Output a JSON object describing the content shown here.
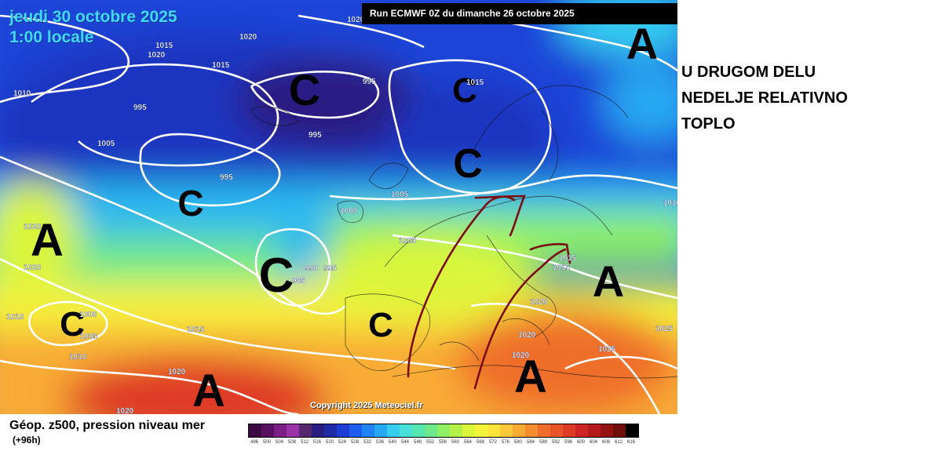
{
  "map": {
    "date_line": "jeudi 30 octobre 2025",
    "time_line": "1:00 locale",
    "run_banner": "Run ECMWF 0Z du dimanche 26 octobre 2025",
    "copyright": "Copyright 2025 Meteociel.fr",
    "pressure_centers": [
      {
        "type": "high",
        "letter": "A"
      },
      {
        "type": "low",
        "letter": "C"
      },
      {
        "type": "low",
        "letter": "C"
      },
      {
        "type": "low",
        "letter": "C"
      },
      {
        "type": "low",
        "letter": "C"
      },
      {
        "type": "low",
        "letter": "C"
      },
      {
        "type": "high",
        "letter": "A"
      },
      {
        "type": "low",
        "letter": "C"
      },
      {
        "type": "low",
        "letter": "C"
      },
      {
        "type": "high",
        "letter": "A"
      },
      {
        "type": "high",
        "letter": "A"
      },
      {
        "type": "high",
        "letter": "A"
      }
    ],
    "isobar_labels": [
      "1010",
      "1020",
      "1025",
      "1020",
      "1015",
      "1015",
      "995",
      "995",
      "1015",
      "1005",
      "995",
      "1005",
      "995",
      "1000",
      "1005",
      "1010",
      "1020",
      "1020",
      "990",
      "995",
      "985",
      "1015",
      "1015",
      "1020",
      "1010",
      "1000",
      "1005",
      "1010",
      "1015",
      "1020",
      "1020",
      "1020",
      "1025",
      "1020",
      "1020"
    ]
  },
  "annotation": {
    "lines": [
      "U DRUGOM DELU",
      "NEDELJE RELATIVNO",
      "TOPLO"
    ],
    "arrow_color": "#7a0f14"
  },
  "footer": {
    "title": "Géop. z500, pression niveau mer",
    "subtitle": "(+96h)"
  },
  "legend": {
    "labels": [
      "496",
      "500",
      "504",
      "508",
      "512",
      "516",
      "520",
      "524",
      "528",
      "532",
      "536",
      "540",
      "544",
      "548",
      "552",
      "556",
      "560",
      "564",
      "568",
      "572",
      "576",
      "580",
      "584",
      "588",
      "592",
      "596",
      "600",
      "604",
      "608",
      "612",
      "616"
    ],
    "colors": [
      "#3b0a45",
      "#5a1060",
      "#7a1f86",
      "#9a32a8",
      "#55286e",
      "#2a1d82",
      "#1e2aa6",
      "#1d3ed4",
      "#1e5cf0",
      "#1f82f5",
      "#27a9f2",
      "#36cdf0",
      "#46e0d8",
      "#56e6b0",
      "#6ee88a",
      "#8ef062",
      "#b4f048",
      "#daf53a",
      "#f5f23a",
      "#fde43a",
      "#fbc838",
      "#f8ab34",
      "#f48d30",
      "#ef6e2c",
      "#e85328",
      "#df3a25",
      "#cf2424",
      "#b51a1a",
      "#951212",
      "#700c0c",
      "#000000"
    ]
  }
}
